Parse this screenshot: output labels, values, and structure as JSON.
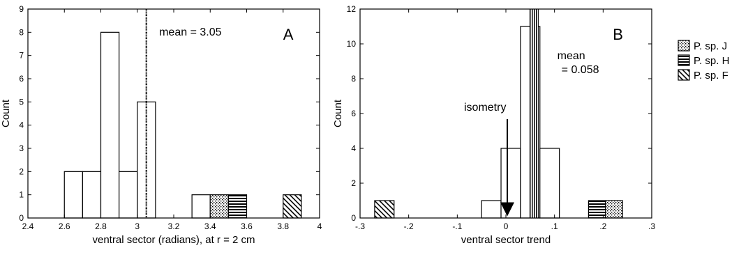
{
  "chart_data": [
    {
      "type": "bar",
      "panel_label": "A",
      "xlabel": "ventral sector (radians), at r = 2 cm",
      "ylabel": "Count",
      "xlim": [
        2.4,
        4.0
      ],
      "ylim": [
        0,
        9
      ],
      "bin_width": 0.1,
      "x_ticks": [
        "2.4",
        "2.6",
        "2.8",
        "3",
        "3.2",
        "3.4",
        "3.6",
        "3.8",
        "4"
      ],
      "x_tick_values": [
        2.4,
        2.6,
        2.8,
        3.0,
        3.2,
        3.4,
        3.6,
        3.8,
        4.0
      ],
      "y_ticks": [
        "0",
        "1",
        "2",
        "3",
        "4",
        "5",
        "6",
        "7",
        "8",
        "9"
      ],
      "y_tick_values": [
        0,
        1,
        2,
        3,
        4,
        5,
        6,
        7,
        8,
        9
      ],
      "bars": [
        {
          "x": 2.6,
          "count": 2,
          "fill": "open"
        },
        {
          "x": 2.7,
          "count": 2,
          "fill": "open"
        },
        {
          "x": 2.8,
          "count": 8,
          "fill": "open"
        },
        {
          "x": 2.9,
          "count": 2,
          "fill": "open"
        },
        {
          "x": 3.0,
          "count": 5,
          "fill": "open"
        },
        {
          "x": 3.3,
          "count": 1,
          "fill": "open"
        },
        {
          "x": 3.4,
          "count": 1,
          "fill": "dots"
        },
        {
          "x": 3.5,
          "count": 1,
          "fill": "horizontal"
        },
        {
          "x": 3.8,
          "count": 1,
          "fill": "diagonal"
        }
      ],
      "mean_line": 3.05,
      "mean_text": "mean = 3.05"
    },
    {
      "type": "bar",
      "panel_label": "B",
      "xlabel": "ventral sector trend",
      "ylabel": "Count",
      "xlim": [
        -0.3,
        0.3
      ],
      "ylim": [
        0,
        12
      ],
      "x_ticks": [
        "-.3",
        "-.2",
        "-.1",
        "0",
        ".1",
        ".2",
        ".3"
      ],
      "x_tick_values": [
        -0.3,
        -0.2,
        -0.1,
        0,
        0.1,
        0.2,
        0.3
      ],
      "y_ticks": [
        "0",
        "2",
        "4",
        "6",
        "8",
        "10",
        "12"
      ],
      "y_tick_values": [
        0,
        2,
        4,
        6,
        8,
        10,
        12
      ],
      "bars": [
        {
          "x0": -0.27,
          "x1": -0.23,
          "count": 1,
          "fill": "diagonal"
        },
        {
          "x0": -0.05,
          "x1": -0.01,
          "count": 1,
          "fill": "open"
        },
        {
          "x0": -0.01,
          "x1": 0.03,
          "count": 4,
          "fill": "open"
        },
        {
          "x0": 0.03,
          "x1": 0.07,
          "count": 11,
          "fill": "open"
        },
        {
          "x0": 0.07,
          "x1": 0.11,
          "count": 4,
          "fill": "open"
        },
        {
          "x0": 0.17,
          "x1": 0.205,
          "count": 1,
          "fill": "horizontal"
        },
        {
          "x0": 0.205,
          "x1": 0.24,
          "count": 1,
          "fill": "dots"
        }
      ],
      "mean_line": 0.058,
      "mean_text_line1": "mean",
      "mean_text_line2": "= 0.058",
      "isometry_text": "isometry",
      "isometry_x": 0
    }
  ],
  "legend": [
    {
      "label": "P. sp. J",
      "fill": "dots"
    },
    {
      "label": "P. sp. H",
      "fill": "horizontal"
    },
    {
      "label": "P. sp. F",
      "fill": "diagonal"
    }
  ]
}
